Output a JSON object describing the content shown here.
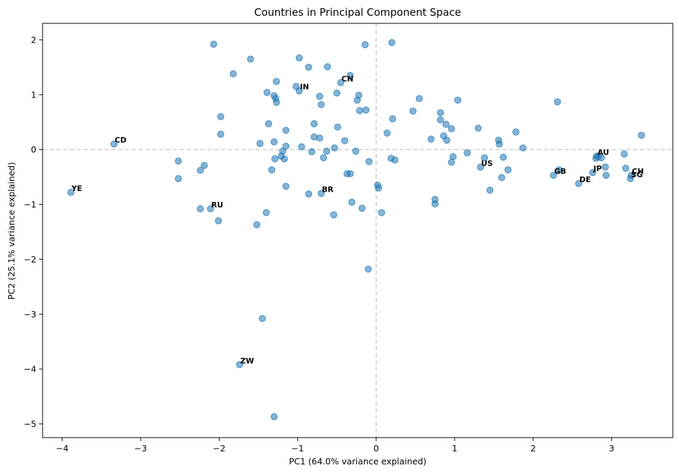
{
  "chart_data": {
    "type": "scatter",
    "title": "Countries in Principal Component Space",
    "xlabel": "PC1 (64.0% variance explained)",
    "ylabel": "PC2 (25.1% variance explained)",
    "xlim": [
      -4.25,
      3.78
    ],
    "ylim": [
      -5.25,
      2.3
    ],
    "xticks": [
      -4,
      -3,
      -2,
      -1,
      0,
      1,
      2,
      3
    ],
    "yticks": [
      -5,
      -4,
      -3,
      -2,
      -1,
      0,
      1,
      2
    ],
    "reference_lines": {
      "x": 0,
      "y": 0,
      "style": "dashed",
      "color": "#cccccc"
    },
    "marker_color": "#1f77b4",
    "marker_alpha": 0.55,
    "grid": false,
    "labeled_points": [
      {
        "label": "CN",
        "x": -0.45,
        "y": 1.22
      },
      {
        "label": "IN",
        "x": -0.98,
        "y": 1.07
      },
      {
        "label": "CD",
        "x": -3.34,
        "y": 0.1
      },
      {
        "label": "YE",
        "x": -3.89,
        "y": -0.78
      },
      {
        "label": "RU",
        "x": -2.11,
        "y": -1.08
      },
      {
        "label": "BR",
        "x": -0.7,
        "y": -0.8
      },
      {
        "label": "ZW",
        "x": -1.74,
        "y": -3.92
      },
      {
        "label": "US",
        "x": 1.33,
        "y": -0.32
      },
      {
        "label": "AU",
        "x": 2.81,
        "y": -0.12
      },
      {
        "label": "GB",
        "x": 2.26,
        "y": -0.47
      },
      {
        "label": "JP",
        "x": 2.76,
        "y": -0.42
      },
      {
        "label": "DE",
        "x": 2.58,
        "y": -0.62
      },
      {
        "label": "CH",
        "x": 3.25,
        "y": -0.47
      },
      {
        "label": "SG",
        "x": 3.24,
        "y": -0.53
      }
    ],
    "points": [
      [
        -2.07,
        1.92
      ],
      [
        -1.6,
        1.65
      ],
      [
        -1.82,
        1.38
      ],
      [
        -0.98,
        1.67
      ],
      [
        -0.86,
        1.5
      ],
      [
        -0.62,
        1.51
      ],
      [
        -0.33,
        1.35
      ],
      [
        -0.14,
        1.91
      ],
      [
        0.2,
        1.95
      ],
      [
        -1.27,
        1.24
      ],
      [
        -1.39,
        1.04
      ],
      [
        -1.3,
        0.98
      ],
      [
        -1.28,
        0.93
      ],
      [
        -1.27,
        0.86
      ],
      [
        -1.02,
        1.15
      ],
      [
        -0.72,
        0.97
      ],
      [
        -0.7,
        0.82
      ],
      [
        -0.5,
        1.03
      ],
      [
        -0.22,
        0.99
      ],
      [
        -0.24,
        0.9
      ],
      [
        -0.21,
        0.71
      ],
      [
        -0.13,
        0.72
      ],
      [
        -1.98,
        0.6
      ],
      [
        -1.37,
        0.47
      ],
      [
        -1.98,
        0.28
      ],
      [
        -1.15,
        0.35
      ],
      [
        -0.79,
        0.47
      ],
      [
        -0.49,
        0.41
      ],
      [
        -0.4,
        0.16
      ],
      [
        -0.79,
        0.23
      ],
      [
        -0.72,
        0.21
      ],
      [
        -1.3,
        0.14
      ],
      [
        -1.15,
        0.06
      ],
      [
        -0.95,
        0.05
      ],
      [
        -0.53,
        0.03
      ],
      [
        -1.48,
        0.11
      ],
      [
        -1.19,
        -0.03
      ],
      [
        -0.82,
        -0.04
      ],
      [
        -0.63,
        -0.03
      ],
      [
        -0.26,
        -0.03
      ],
      [
        -1.29,
        -0.17
      ],
      [
        -1.21,
        -0.12
      ],
      [
        -1.17,
        -0.17
      ],
      [
        -0.67,
        -0.15
      ],
      [
        -0.09,
        -0.22
      ],
      [
        -0.37,
        -0.44
      ],
      [
        -0.33,
        -0.44
      ],
      [
        -1.33,
        -0.37
      ],
      [
        -2.52,
        -0.21
      ],
      [
        -2.52,
        -0.53
      ],
      [
        -2.24,
        -0.38
      ],
      [
        -2.19,
        -0.29
      ],
      [
        -1.15,
        -0.67
      ],
      [
        -0.86,
        -0.81
      ],
      [
        -0.31,
        -0.96
      ],
      [
        -0.18,
        -1.07
      ],
      [
        -0.54,
        -1.19
      ],
      [
        -1.4,
        -1.15
      ],
      [
        -2.24,
        -1.08
      ],
      [
        -2.01,
        -1.3
      ],
      [
        -1.52,
        -1.37
      ],
      [
        0.02,
        -0.65
      ],
      [
        0.03,
        -0.7
      ],
      [
        0.07,
        -1.15
      ],
      [
        -0.1,
        -2.18
      ],
      [
        -1.45,
        -3.08
      ],
      [
        -1.3,
        -4.87
      ],
      [
        0.14,
        0.3
      ],
      [
        0.21,
        0.56
      ],
      [
        0.47,
        0.7
      ],
      [
        0.55,
        0.93
      ],
      [
        0.19,
        -0.16
      ],
      [
        0.24,
        -0.19
      ],
      [
        0.7,
        0.19
      ],
      [
        0.82,
        0.67
      ],
      [
        0.82,
        0.54
      ],
      [
        0.86,
        0.25
      ],
      [
        0.89,
        0.46
      ],
      [
        0.9,
        0.17
      ],
      [
        0.96,
        0.38
      ],
      [
        1.04,
        0.9
      ],
      [
        1.16,
        -0.06
      ],
      [
        1.3,
        0.39
      ],
      [
        0.96,
        -0.23
      ],
      [
        0.98,
        -0.13
      ],
      [
        0.75,
        -0.91
      ],
      [
        0.75,
        -0.99
      ],
      [
        1.45,
        -0.74
      ],
      [
        1.38,
        -0.15
      ],
      [
        1.56,
        0.17
      ],
      [
        1.57,
        0.1
      ],
      [
        1.62,
        -0.14
      ],
      [
        1.6,
        -0.51
      ],
      [
        1.68,
        -0.37
      ],
      [
        1.78,
        0.32
      ],
      [
        1.87,
        0.03
      ],
      [
        2.31,
        0.87
      ],
      [
        2.33,
        -0.37
      ],
      [
        2.87,
        -0.15
      ],
      [
        2.83,
        -0.13
      ],
      [
        2.92,
        -0.32
      ],
      [
        2.93,
        -0.47
      ],
      [
        3.16,
        -0.08
      ],
      [
        3.18,
        -0.34
      ],
      [
        3.38,
        0.26
      ],
      [
        2.8,
        -0.16
      ]
    ]
  }
}
